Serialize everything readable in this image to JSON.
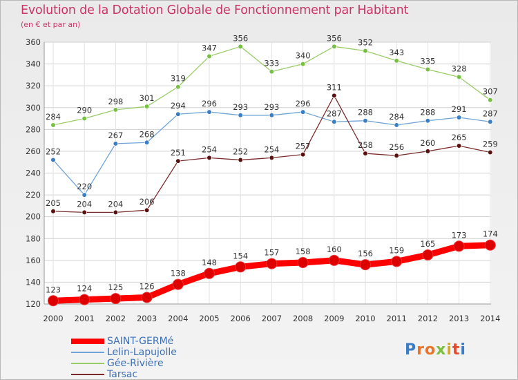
{
  "title": "Evolution de la Dotation Globale de Fonctionnement par Habitant",
  "subtitle": "(en € et par an)",
  "brand": "Proxiti",
  "chart_data": {
    "type": "line",
    "title": "Evolution de la Dotation Globale de Fonctionnement par Habitant",
    "subtitle": "(en € et par an)",
    "xlabel": "",
    "ylabel": "",
    "x": [
      2000,
      2001,
      2002,
      2003,
      2004,
      2005,
      2006,
      2007,
      2008,
      2009,
      2010,
      2011,
      2012,
      2013,
      2014
    ],
    "ylim": [
      120,
      360
    ],
    "yticks": [
      120,
      140,
      160,
      180,
      200,
      220,
      240,
      260,
      280,
      300,
      320,
      340,
      360
    ],
    "grid": true,
    "legend_position": "bottom-left",
    "series": [
      {
        "name": "SAINT-GERMé",
        "color": "#ff0000",
        "marker": "#dd0000",
        "width": "thick",
        "values": [
          123,
          124,
          125,
          126,
          138,
          148,
          154,
          157,
          158,
          160,
          156,
          159,
          165,
          173,
          174
        ]
      },
      {
        "name": "Lelin-Lapujolle",
        "color": "#6fa4d8",
        "marker": "#3a7fc5",
        "width": "thin",
        "values": [
          252,
          220,
          267,
          268,
          294,
          296,
          293,
          293,
          296,
          287,
          288,
          284,
          288,
          291,
          287
        ]
      },
      {
        "name": "Gée-Rivière",
        "color": "#99cc66",
        "marker": "#77c043",
        "width": "thin",
        "values": [
          284,
          290,
          298,
          301,
          319,
          347,
          356,
          333,
          340,
          356,
          352,
          343,
          335,
          328,
          307
        ]
      },
      {
        "name": "Tarsac",
        "color": "#7a2a2a",
        "marker": "#5a1010",
        "width": "thin",
        "values": [
          205,
          204,
          204,
          206,
          251,
          254,
          252,
          254,
          257,
          311,
          258,
          256,
          260,
          265,
          259
        ]
      }
    ]
  }
}
